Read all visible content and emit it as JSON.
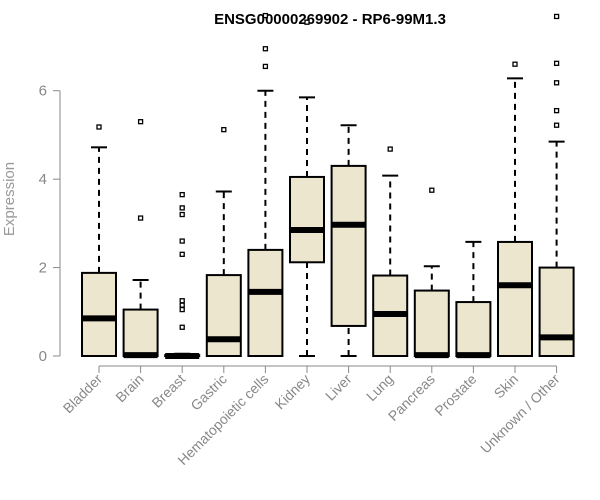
{
  "chart_data": {
    "type": "boxplot",
    "title": "ENSG00000269902 - RP6-99M1.3",
    "xlabel": "",
    "ylabel": "Expression",
    "ylim": [
      0,
      7.6
    ],
    "yticks": [
      0,
      2,
      4,
      6
    ],
    "colors": {
      "box_fill": "#ede6cf",
      "outline": "#000000",
      "axis": "#888888"
    },
    "categories": [
      "Bladder",
      "Brain",
      "Breast",
      "Gastric",
      "Hematopoietic cells",
      "Kidney",
      "Liver",
      "Lung",
      "Pancreas",
      "Prostate",
      "Skin",
      "Unknown / Other"
    ],
    "boxes": [
      {
        "name": "Bladder",
        "min": 0,
        "q1": 0,
        "median": 0.85,
        "q3": 1.88,
        "max": 4.72,
        "outliers": [
          5.18
        ]
      },
      {
        "name": "Brain",
        "min": 0,
        "q1": 0,
        "median": 0.02,
        "q3": 1.05,
        "max": 1.72,
        "outliers": [
          3.12,
          5.3
        ]
      },
      {
        "name": "Breast",
        "min": 0,
        "q1": 0,
        "median": 0,
        "q3": 0.02,
        "max": 0.05,
        "outliers": [
          0.65,
          1.05,
          1.15,
          1.25,
          2.3,
          2.6,
          3.2,
          3.35,
          3.65
        ]
      },
      {
        "name": "Gastric",
        "min": 0,
        "q1": 0,
        "median": 0.38,
        "q3": 1.83,
        "max": 3.72,
        "outliers": [
          5.12
        ]
      },
      {
        "name": "Hematopoietic cells",
        "min": 0,
        "q1": 0,
        "median": 1.45,
        "q3": 2.4,
        "max": 6.0,
        "outliers": [
          6.55,
          6.95,
          7.7
        ]
      },
      {
        "name": "Kidney",
        "min": 0,
        "q1": 2.12,
        "median": 2.85,
        "q3": 4.05,
        "max": 5.85,
        "outliers": [
          7.55
        ]
      },
      {
        "name": "Liver",
        "min": 0,
        "q1": 0.68,
        "median": 2.97,
        "q3": 4.3,
        "max": 5.22,
        "outliers": []
      },
      {
        "name": "Lung",
        "min": 0,
        "q1": 0,
        "median": 0.95,
        "q3": 1.82,
        "max": 4.08,
        "outliers": [
          4.68
        ]
      },
      {
        "name": "Pancreas",
        "min": 0,
        "q1": 0,
        "median": 0.02,
        "q3": 1.48,
        "max": 2.03,
        "outliers": [
          3.75
        ]
      },
      {
        "name": "Prostate",
        "min": 0,
        "q1": 0,
        "median": 0.02,
        "q3": 1.22,
        "max": 2.58,
        "outliers": []
      },
      {
        "name": "Skin",
        "min": 0,
        "q1": 0,
        "median": 1.6,
        "q3": 2.58,
        "max": 6.28,
        "outliers": [
          6.6
        ]
      },
      {
        "name": "Unknown / Other",
        "min": 0,
        "q1": 0,
        "median": 0.42,
        "q3": 2.0,
        "max": 4.85,
        "outliers": [
          5.22,
          5.55,
          6.18,
          6.62,
          7.68
        ]
      }
    ]
  }
}
